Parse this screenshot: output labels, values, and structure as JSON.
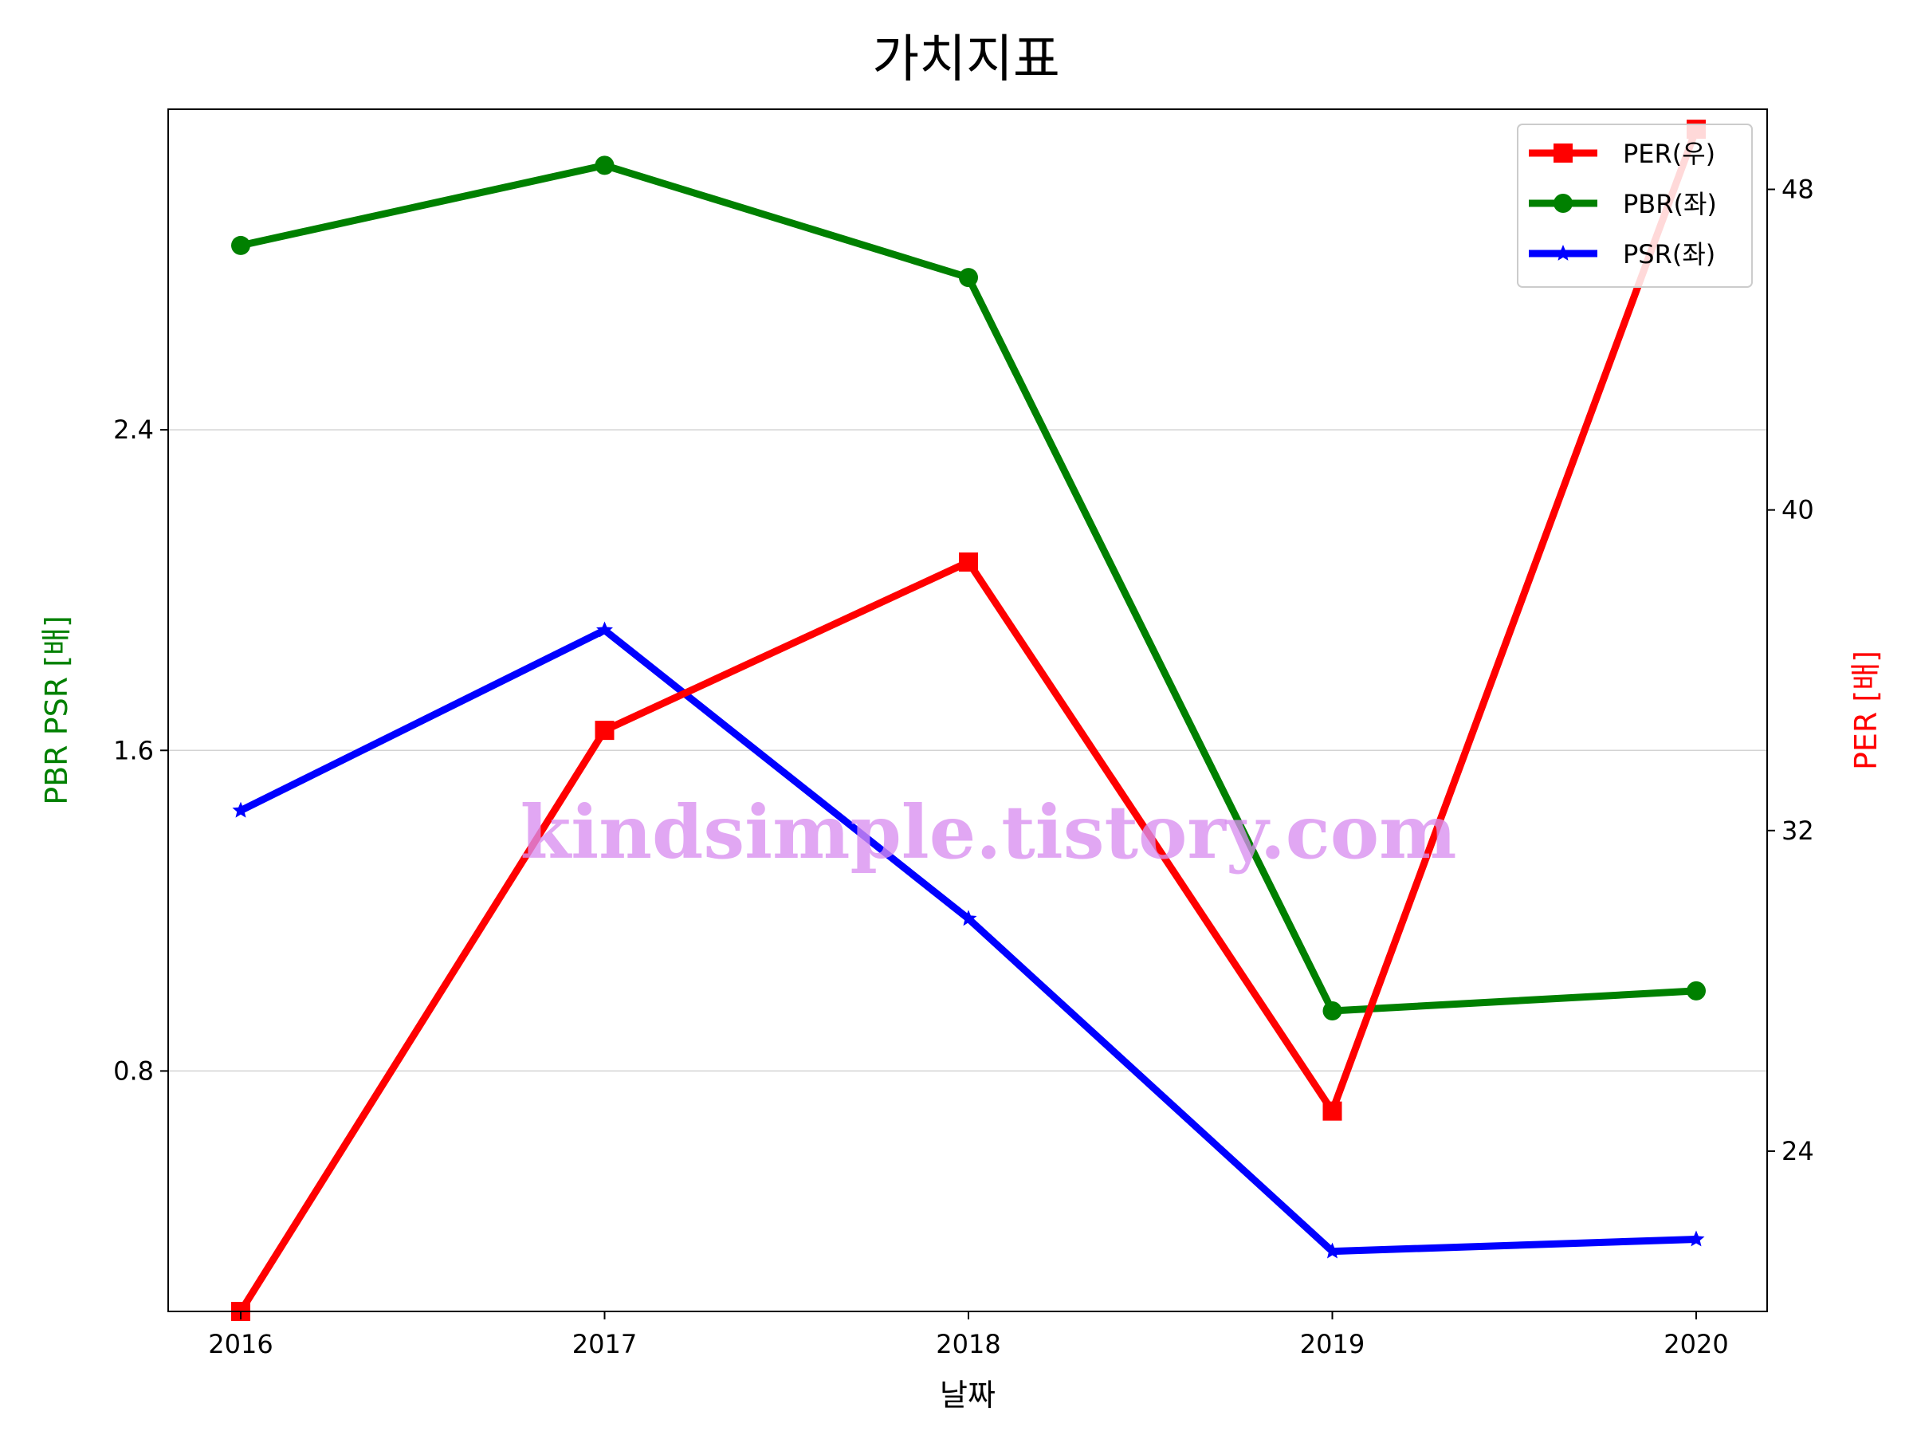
{
  "chart_data": {
    "type": "line",
    "title": "가치지표",
    "xlabel": "날짜",
    "ylabel_left": "PBR PSR [배]",
    "ylabel_right": "PER [배]",
    "categories": [
      "2016",
      "2017",
      "2018",
      "2019",
      "2020"
    ],
    "ylim_left": [
      0.2,
      3.2
    ],
    "yticks_left": [
      "0.8",
      "1.6",
      "2.4"
    ],
    "ylim_right": [
      20,
      50
    ],
    "yticks_right": [
      "24",
      "32",
      "40",
      "48"
    ],
    "grid": "horizontal (left axis)",
    "legend_position": "top-right",
    "watermark": "kindsimple.tistory.com",
    "series": [
      {
        "name": "PER(우)",
        "axis": "right",
        "color": "#ff0000",
        "marker": "square",
        "values": [
          20.0,
          34.5,
          38.7,
          25.0,
          49.5
        ]
      },
      {
        "name": "PBR(좌)",
        "axis": "left",
        "color": "#008000",
        "marker": "circle",
        "values": [
          2.86,
          3.06,
          2.78,
          0.95,
          1.0
        ]
      },
      {
        "name": "PSR(좌)",
        "axis": "left",
        "color": "#0000ff",
        "marker": "star",
        "values": [
          1.45,
          1.9,
          1.18,
          0.35,
          0.38
        ]
      }
    ]
  }
}
